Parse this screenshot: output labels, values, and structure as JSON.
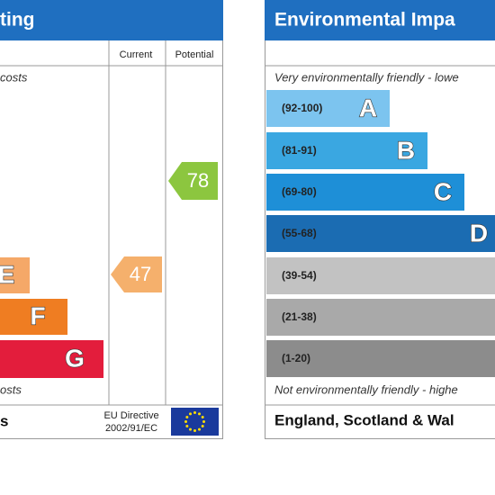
{
  "left": {
    "header": "ting",
    "columns": [
      "Current",
      "Potential"
    ],
    "top_note": "costs",
    "bands": [
      {
        "letter": "E"
      },
      {
        "letter": "F"
      },
      {
        "letter": "G"
      }
    ],
    "current": "47",
    "potential": "78",
    "bottom_note": "osts",
    "footer": {
      "region": "s",
      "directive": [
        "EU Directive",
        "2002/91/EC"
      ]
    }
  },
  "right": {
    "header": "Environmental Impa",
    "top_note": "Very environmentally friendly - lowe",
    "bands": [
      {
        "range": "(92-100)",
        "letter": "A"
      },
      {
        "range": "(81-91)",
        "letter": "B"
      },
      {
        "range": "(69-80)",
        "letter": "C"
      },
      {
        "range": "(55-68)",
        "letter": "D"
      },
      {
        "range": "(39-54)"
      },
      {
        "range": "(21-38)"
      },
      {
        "range": "(1-20)"
      }
    ],
    "bottom_note": "Not environmentally friendly - highe",
    "footer": {
      "region": "England, Scotland & Wal"
    }
  }
}
